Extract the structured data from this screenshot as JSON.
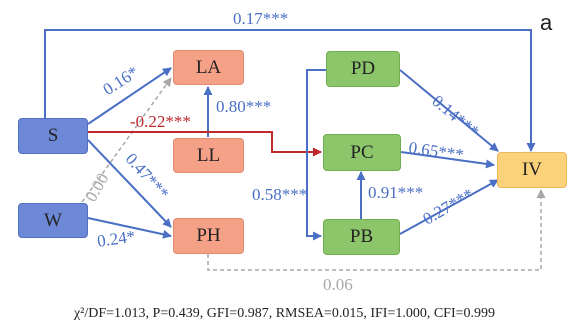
{
  "panel_label": "a",
  "nodes": {
    "S": "S",
    "W": "W",
    "LA": "LA",
    "LL": "LL",
    "PH": "PH",
    "PD": "PD",
    "PC": "PC",
    "PB": "PB",
    "IV": "IV"
  },
  "coefficients": {
    "s_iv": "0.17***",
    "s_la": "0.16*",
    "s_pc": "-0.22***",
    "ll_la": "0.80***",
    "w_la": "0.00",
    "s_ph": "0.47***",
    "w_ph": "0.24*",
    "pd_iv": "0.14***",
    "pc_iv": "0.65***",
    "pb_pc": "0.91***",
    "pb_iv": "0.27***",
    "pd_pb": "0.58***",
    "ph_iv": "0.06"
  },
  "fit_indices": "χ²/DF=1.013, P=0.439, GFI=0.987, RMSEA=0.015, IFI=1.000, CFI=0.999",
  "colors": {
    "blue_path": "#4a6fc4",
    "red_path": "#c0292b",
    "gray_path": "#a8a8a8"
  }
}
